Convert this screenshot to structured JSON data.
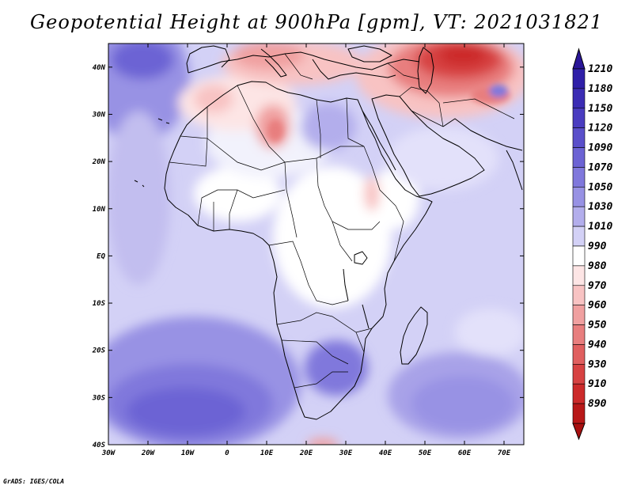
{
  "title": "Geopotential Height at 900hPa [gpm], VT: 2021031821",
  "credit": "GrADS: IGES/COLA",
  "map": {
    "projection": "lat-lon",
    "lon_range": [
      -30,
      75
    ],
    "lat_range": [
      -40,
      45
    ],
    "lat_ticks": [
      {
        "value": 40,
        "label": "40N"
      },
      {
        "value": 30,
        "label": "30N"
      },
      {
        "value": 20,
        "label": "20N"
      },
      {
        "value": 10,
        "label": "10N"
      },
      {
        "value": 0,
        "label": "EQ"
      },
      {
        "value": -10,
        "label": "10S"
      },
      {
        "value": -20,
        "label": "20S"
      },
      {
        "value": -30,
        "label": "30S"
      },
      {
        "value": -40,
        "label": "40S"
      }
    ],
    "lon_ticks": [
      {
        "value": -30,
        "label": "30W"
      },
      {
        "value": -20,
        "label": "20W"
      },
      {
        "value": -10,
        "label": "10W"
      },
      {
        "value": 0,
        "label": "0"
      },
      {
        "value": 10,
        "label": "10E"
      },
      {
        "value": 20,
        "label": "20E"
      },
      {
        "value": 30,
        "label": "30E"
      },
      {
        "value": 40,
        "label": "40E"
      },
      {
        "value": 50,
        "label": "50E"
      },
      {
        "value": 60,
        "label": "60E"
      },
      {
        "value": 70,
        "label": "70E"
      }
    ]
  },
  "colorbar": {
    "levels": [
      {
        "label": "1210",
        "color": "#2f1fa8"
      },
      {
        "label": "1180",
        "color": "#3b2cb4"
      },
      {
        "label": "1150",
        "color": "#4a3cc0"
      },
      {
        "label": "1120",
        "color": "#5a4fca"
      },
      {
        "label": "1090",
        "color": "#6c63d4"
      },
      {
        "label": "1070",
        "color": "#8078dc"
      },
      {
        "label": "1050",
        "color": "#9892e4"
      },
      {
        "label": "1030",
        "color": "#b3aeec"
      },
      {
        "label": "1010",
        "color": "#d3d1f6"
      },
      {
        "label": "990",
        "color": "#ffffff"
      },
      {
        "label": "980",
        "color": "#fde5e5"
      },
      {
        "label": "970",
        "color": "#f8c3c3"
      },
      {
        "label": "960",
        "color": "#f0a0a0"
      },
      {
        "label": "950",
        "color": "#e87e7e"
      },
      {
        "label": "940",
        "color": "#e05f5f"
      },
      {
        "label": "930",
        "color": "#d74242"
      },
      {
        "label": "910",
        "color": "#cc2a2a"
      },
      {
        "label": "890",
        "color": "#b81818"
      }
    ],
    "over_color": "#2a1698",
    "under_color": "#a81010"
  },
  "colors": {
    "ocean_base": "#d3d1f6",
    "land_base": "#ffffff",
    "coast": "#000000"
  }
}
